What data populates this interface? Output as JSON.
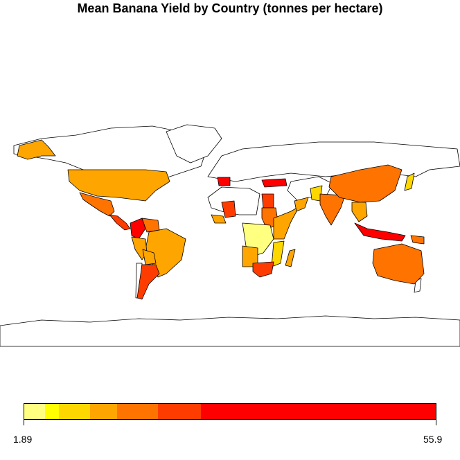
{
  "title": "Mean Banana Yield by Country (tonnes per hectare)",
  "legend": {
    "min_label": "1.89",
    "max_label": "55.9",
    "colors": [
      {
        "color": "#ffff80",
        "from": 0.0,
        "to": 0.05
      },
      {
        "color": "#ffff00",
        "from": 0.05,
        "to": 0.085
      },
      {
        "color": "#ffd700",
        "from": 0.085,
        "to": 0.16
      },
      {
        "color": "#ffa500",
        "from": 0.16,
        "to": 0.225
      },
      {
        "color": "#ff7300",
        "from": 0.225,
        "to": 0.325
      },
      {
        "color": "#ff3c00",
        "from": 0.325,
        "to": 0.43
      },
      {
        "color": "#ff0000",
        "from": 0.43,
        "to": 1.0
      }
    ]
  },
  "map_data": {
    "type": "choropleth",
    "metric": "Mean Banana Yield (tonnes per hectare)",
    "range": [
      1.89,
      55.9
    ],
    "no_data_color": "#ffffff",
    "countries": [
      {
        "name": "USA",
        "color": "#ffa500"
      },
      {
        "name": "Mexico",
        "color": "#ff7300"
      },
      {
        "name": "Central America",
        "color": "#ff3c00"
      },
      {
        "name": "Colombia",
        "color": "#ff0000"
      },
      {
        "name": "Venezuela",
        "color": "#ff7300"
      },
      {
        "name": "Brazil",
        "color": "#ffa500"
      },
      {
        "name": "Peru",
        "color": "#ffa500"
      },
      {
        "name": "Bolivia",
        "color": "#ffa500"
      },
      {
        "name": "Argentina",
        "color": "#ff3c00"
      },
      {
        "name": "Spain",
        "color": "#ff0000"
      },
      {
        "name": "Turkey",
        "color": "#ff0000"
      },
      {
        "name": "Egypt",
        "color": "#ff3c00"
      },
      {
        "name": "Sudan",
        "color": "#ff7300"
      },
      {
        "name": "Mali",
        "color": "#ff3c00"
      },
      {
        "name": "West Africa",
        "color": "#ffa500"
      },
      {
        "name": "Central Africa",
        "color": "#ffff80"
      },
      {
        "name": "East Africa",
        "color": "#ffa500"
      },
      {
        "name": "Angola",
        "color": "#ffa500"
      },
      {
        "name": "Mozambique",
        "color": "#ffd700"
      },
      {
        "name": "Madagascar",
        "color": "#ffa500"
      },
      {
        "name": "South Africa",
        "color": "#ff3c00"
      },
      {
        "name": "Oman",
        "color": "#ffa500"
      },
      {
        "name": "Pakistan",
        "color": "#ffd700"
      },
      {
        "name": "India",
        "color": "#ff7300"
      },
      {
        "name": "China",
        "color": "#ff7300"
      },
      {
        "name": "Southeast Asia",
        "color": "#ffa500"
      },
      {
        "name": "Indonesia",
        "color": "#ff0000"
      },
      {
        "name": "Papua New Guinea",
        "color": "#ff7300"
      },
      {
        "name": "Japan",
        "color": "#ffd700"
      },
      {
        "name": "Australia",
        "color": "#ff7300"
      }
    ]
  }
}
